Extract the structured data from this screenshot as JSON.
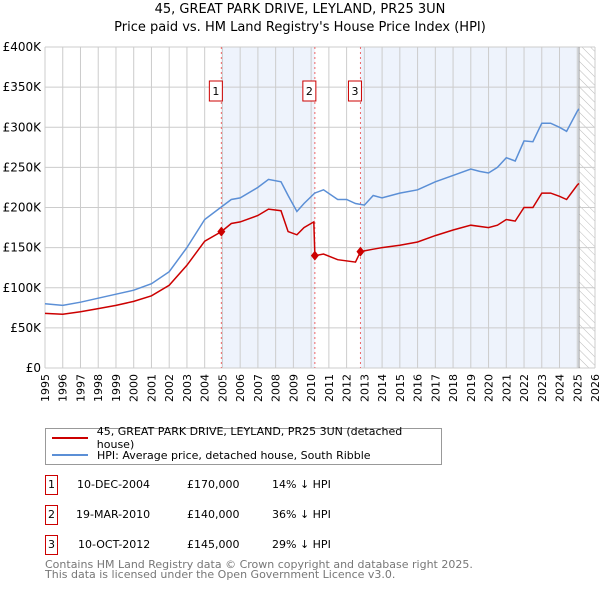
{
  "chart_data": {
    "type": "line",
    "title": "45, GREAT PARK DRIVE, LEYLAND, PR25 3UN",
    "subtitle": "Price paid vs. HM Land Registry's House Price Index (HPI)",
    "xlim": [
      1995,
      2026
    ],
    "ylim": [
      0,
      400000
    ],
    "yticks": [
      {
        "v": 0,
        "label": "£0"
      },
      {
        "v": 50000,
        "label": "£50K"
      },
      {
        "v": 100000,
        "label": "£100K"
      },
      {
        "v": 150000,
        "label": "£150K"
      },
      {
        "v": 200000,
        "label": "£200K"
      },
      {
        "v": 250000,
        "label": "£250K"
      },
      {
        "v": 300000,
        "label": "£300K"
      },
      {
        "v": 350000,
        "label": "£350K"
      },
      {
        "v": 400000,
        "label": "£400K"
      }
    ],
    "xticks": [
      "1995",
      "1996",
      "1997",
      "1998",
      "1999",
      "2000",
      "2001",
      "2002",
      "2003",
      "2004",
      "2005",
      "2006",
      "2007",
      "2008",
      "2009",
      "2010",
      "2011",
      "2012",
      "2013",
      "2014",
      "2015",
      "2016",
      "2017",
      "2018",
      "2019",
      "2020",
      "2021",
      "2022",
      "2023",
      "2024",
      "2025",
      "2026"
    ],
    "grid": true,
    "forecast_from": 2025.1,
    "series": [
      {
        "name": "45, GREAT PARK DRIVE, LEYLAND, PR25 3UN (detached house)",
        "color": "#cc0000",
        "x": [
          1995,
          1996,
          1997,
          1998,
          1999,
          2000,
          2001,
          2002,
          2003,
          2004,
          2004.94,
          2005.5,
          2006,
          2007,
          2007.6,
          2008.3,
          2008.7,
          2009.2,
          2009.6,
          2010.15,
          2010.21,
          2010.7,
          2011.5,
          2012.5,
          2012.78,
          2013.5,
          2014,
          2015,
          2016,
          2017,
          2018,
          2019,
          2020,
          2020.5,
          2021,
          2021.5,
          2022,
          2022.5,
          2023,
          2023.5,
          2024,
          2024.4,
          2025,
          2025.1
        ],
        "y": [
          68000,
          67000,
          70000,
          74000,
          78000,
          83000,
          90000,
          103000,
          128000,
          158000,
          170000,
          180000,
          182000,
          190000,
          198000,
          196000,
          170000,
          166000,
          175000,
          182000,
          140000,
          142000,
          135000,
          132000,
          145000,
          148000,
          150000,
          153000,
          157000,
          165000,
          172000,
          178000,
          175000,
          178000,
          185000,
          183000,
          200000,
          200000,
          218000,
          218000,
          214000,
          210000,
          228000,
          230000
        ]
      },
      {
        "name": "HPI: Average price, detached house, South Ribble",
        "color": "#5b8fd6",
        "x": [
          1995,
          1996,
          1997,
          1998,
          1999,
          2000,
          2001,
          2002,
          2003,
          2004,
          2004.9,
          2005.5,
          2006,
          2007,
          2007.6,
          2008.3,
          2008.7,
          2009.2,
          2009.6,
          2010.2,
          2010.7,
          2011.5,
          2012,
          2012.5,
          2013,
          2013.5,
          2014,
          2015,
          2016,
          2017,
          2018,
          2019,
          2019.5,
          2020,
          2020.5,
          2021,
          2021.5,
          2022,
          2022.5,
          2023,
          2023.5,
          2024,
          2024.4,
          2025,
          2025.1
        ],
        "y": [
          80000,
          78000,
          82000,
          87000,
          92000,
          97000,
          105000,
          120000,
          150000,
          185000,
          200000,
          210000,
          212000,
          225000,
          235000,
          232000,
          215000,
          195000,
          205000,
          218000,
          222000,
          210000,
          210000,
          205000,
          203000,
          215000,
          212000,
          218000,
          222000,
          232000,
          240000,
          248000,
          245000,
          243000,
          250000,
          262000,
          258000,
          283000,
          282000,
          305000,
          305000,
          300000,
          295000,
          320000,
          323000
        ]
      }
    ],
    "sales": [
      {
        "label": "1",
        "x": 2004.94,
        "date": "10-DEC-2004",
        "price": 170000,
        "price_label": "£170,000",
        "hpi": "14% ↓ HPI"
      },
      {
        "label": "2",
        "x": 2010.21,
        "date": "19-MAR-2010",
        "price": 140000,
        "price_label": "£140,000",
        "hpi": "36% ↓ HPI"
      },
      {
        "label": "3",
        "x": 2012.78,
        "date": "10-OCT-2012",
        "price": 145000,
        "price_label": "£145,000",
        "hpi": "29% ↓ HPI"
      }
    ]
  },
  "footer": [
    "Contains HM Land Registry data © Crown copyright and database right 2025.",
    "This data is licensed under the Open Government Licence v3.0."
  ]
}
